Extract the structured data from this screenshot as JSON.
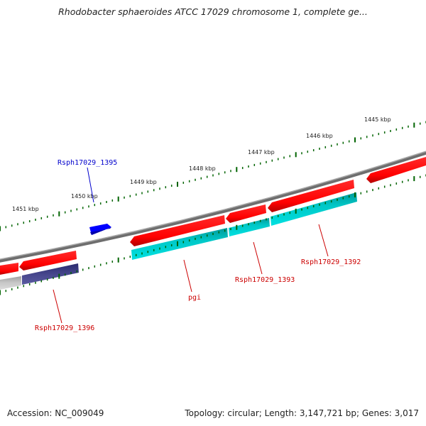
{
  "header": {
    "title": "Rhodobacter sphaeroides ATCC 17029 chromosome 1, complete ge..."
  },
  "footer": {
    "accession": "Accession: NC_009049",
    "stats": "Topology: circular; Length: 3,147,721 bp; Genes: 3,017"
  },
  "scale": {
    "labels": [
      "1445 kbp",
      "1446 kbp",
      "1447 kbp",
      "1448 kbp",
      "1449 kbp",
      "1450 kbp",
      "1451 kbp"
    ]
  },
  "genes": [
    {
      "label": "Rsph17029_1395",
      "color": "#0000cc"
    },
    {
      "label": "Rsph17029_1396",
      "color": "#cc0000"
    },
    {
      "label": "pgi",
      "color": "#cc0000"
    },
    {
      "label": "Rsph17029_1393",
      "color": "#cc0000"
    },
    {
      "label": "Rsph17029_1392",
      "color": "#cc0000"
    }
  ],
  "colors": {
    "backbone": "#808080",
    "cds_forward": "#ff0000",
    "cds_reverse": "#ff0000",
    "gene_blue": "#0000ff",
    "cog_cyan": "#00c8c8",
    "cog_navy": "#3c3c8c",
    "cog_gray": "#c0c0c0",
    "tick_green": "#006400"
  }
}
